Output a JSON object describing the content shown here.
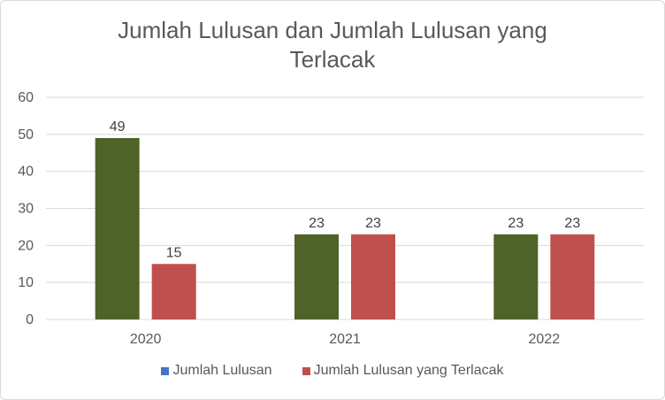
{
  "chart_data": {
    "type": "bar",
    "title_lines": [
      "Jumlah Lulusan dan Jumlah Lulusan yang",
      "Terlacak"
    ],
    "categories": [
      "2020",
      "2021",
      "2022"
    ],
    "series": [
      {
        "name": "Jumlah Lulusan",
        "values": [
          49,
          23,
          23
        ],
        "color": "#4f6228",
        "legend_color": "#4472c4"
      },
      {
        "name": "Jumlah Lulusan yang Terlacak",
        "values": [
          15,
          23,
          23
        ],
        "color": "#c0504d",
        "legend_color": "#c0504d"
      }
    ],
    "y_ticks": [
      "0",
      "10",
      "20",
      "30",
      "40",
      "50",
      "60"
    ],
    "ylim": [
      0,
      60
    ],
    "grid": true,
    "legend_position": "bottom",
    "data_labels": true
  }
}
